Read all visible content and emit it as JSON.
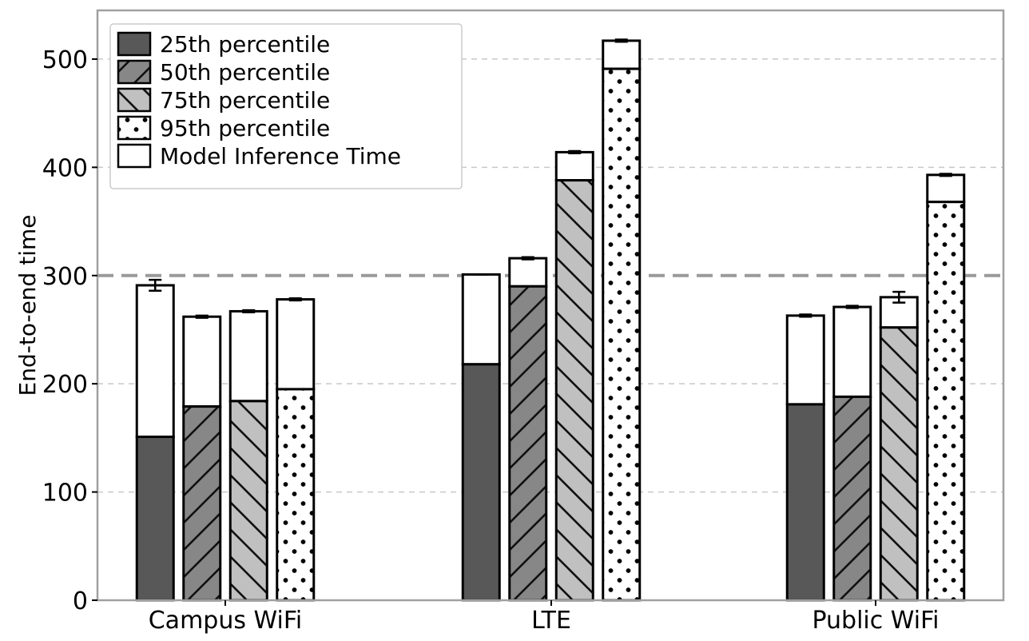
{
  "chart_data": {
    "type": "bar",
    "stacked": true,
    "categories": [
      "Campus WiFi",
      "LTE",
      "Public WiFi"
    ],
    "ylabel": "End-to-end time",
    "xlabel": "",
    "ylim": [
      0,
      545
    ],
    "yticks": [
      0,
      100,
      200,
      300,
      400,
      500
    ],
    "grid": "horizontal-dashed",
    "legend_position": "top-left",
    "reference_line": 300,
    "series": [
      {
        "name": "25th percentile",
        "pattern": "solid-dark",
        "base_values": [
          151,
          218,
          181
        ],
        "total_values": [
          291,
          301,
          263
        ],
        "error": [
          5,
          0,
          1
        ]
      },
      {
        "name": "50th percentile",
        "pattern": "forward-hatch",
        "base_values": [
          179,
          290,
          188
        ],
        "total_values": [
          262,
          316,
          271
        ],
        "error": [
          1,
          1,
          1
        ]
      },
      {
        "name": "75th percentile",
        "pattern": "back-hatch",
        "base_values": [
          184,
          388,
          252
        ],
        "total_values": [
          267,
          414,
          280
        ],
        "error": [
          1,
          1,
          5
        ]
      },
      {
        "name": "95th percentile",
        "pattern": "dots",
        "base_values": [
          195,
          491,
          368
        ],
        "total_values": [
          278,
          517,
          393
        ],
        "error": [
          1,
          1,
          1
        ]
      }
    ],
    "inference_series_name": "Model Inference Time",
    "colors": {
      "p25": "#585858",
      "p50": "#878787",
      "p75": "#c0c0c0",
      "p95": "#ffffff",
      "inference": "#ffffff",
      "grid": "#c8c8c8",
      "reference": "#9a9a9a",
      "frame": "#a0a0a0"
    }
  }
}
